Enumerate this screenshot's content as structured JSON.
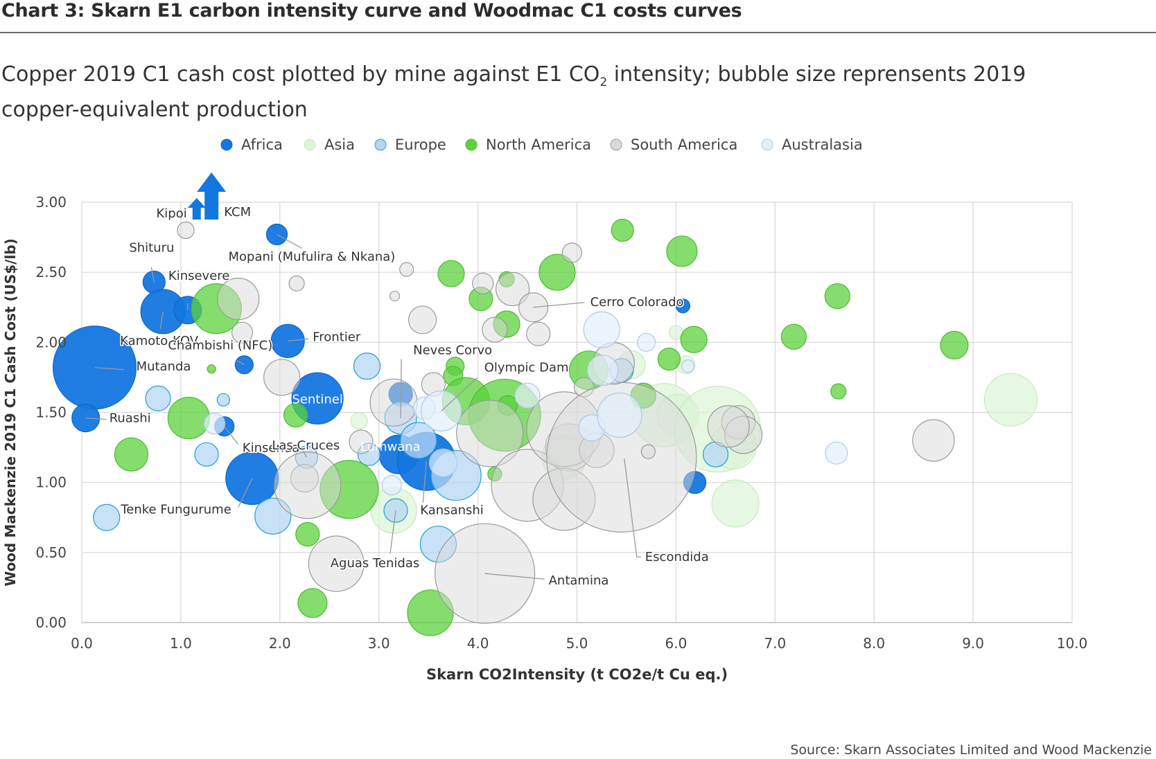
{
  "title": "Chart 3: Skarn E1 carbon intensity curve and Woodmac C1 costs curves",
  "subtitle_pre": "Copper 2019 C1 cash cost plotted by mine against E1 CO",
  "subtitle_sub": "2",
  "subtitle_post": " intensity; bubble size reprensents 2019 copper-equivalent production",
  "source": "Source: Skarn Associates Limited and Wood Mackenzie",
  "colors": {
    "Africa": "#1476e0",
    "Asia": "#dcf3d6",
    "Europe": "#b6d7f4",
    "North America": "#5bd23c",
    "South America": "#d9d9d9",
    "Australasia": "#e3eefb"
  },
  "chart_data": {
    "type": "scatter",
    "bubble": true,
    "xlabel": "Skarn CO2Intensity (t CO2e/t Cu eq.)",
    "ylabel": "Wood Mackenzie 2019 C1 Cash Cost (US$/lb)",
    "xlim": [
      0,
      10
    ],
    "ylim": [
      0,
      3
    ],
    "xticks": [
      "0.0",
      "1.0",
      "2.0",
      "3.0",
      "4.0",
      "5.0",
      "6.0",
      "7.0",
      "8.0",
      "9.0",
      "10.0"
    ],
    "yticks": [
      "0.00",
      "0.50",
      "1.00",
      "1.50",
      "2.00",
      "2.50",
      "3.00"
    ],
    "grid": true,
    "legend_position": "top",
    "legend": [
      "Africa",
      "Asia",
      "Europe",
      "North America",
      "South America",
      "Australasia"
    ],
    "series": [
      {
        "name": "Africa",
        "points": [
          {
            "x": 0.13,
            "y": 1.82,
            "r": 60
          },
          {
            "x": 0.04,
            "y": 1.46,
            "r": 20
          },
          {
            "x": 0.73,
            "y": 2.43,
            "r": 16
          },
          {
            "x": 0.82,
            "y": 2.22,
            "r": 32
          },
          {
            "x": 1.07,
            "y": 2.23,
            "r": 20
          },
          {
            "x": 1.44,
            "y": 1.4,
            "r": 14
          },
          {
            "x": 1.64,
            "y": 1.84,
            "r": 13
          },
          {
            "x": 1.97,
            "y": 2.77,
            "r": 15
          },
          {
            "x": 2.08,
            "y": 2.01,
            "r": 24
          },
          {
            "x": 2.38,
            "y": 1.6,
            "r": 37
          },
          {
            "x": 1.72,
            "y": 1.03,
            "r": 38
          },
          {
            "x": 3.22,
            "y": 1.63,
            "r": 17
          },
          {
            "x": 3.2,
            "y": 1.2,
            "r": 28
          },
          {
            "x": 3.48,
            "y": 1.15,
            "r": 42
          },
          {
            "x": 6.07,
            "y": 2.26,
            "r": 10
          },
          {
            "x": 6.19,
            "y": 1.0,
            "r": 16
          }
        ]
      },
      {
        "name": "Asia",
        "points": [
          {
            "x": 2.8,
            "y": 1.44,
            "r": 12
          },
          {
            "x": 3.15,
            "y": 0.8,
            "r": 33
          },
          {
            "x": 4.87,
            "y": 1.18,
            "r": 32
          },
          {
            "x": 5.88,
            "y": 1.48,
            "r": 46
          },
          {
            "x": 6.02,
            "y": 1.48,
            "r": 30
          },
          {
            "x": 6.0,
            "y": 2.07,
            "r": 10
          },
          {
            "x": 6.1,
            "y": 1.84,
            "r": 13
          },
          {
            "x": 6.42,
            "y": 1.38,
            "r": 62
          },
          {
            "x": 6.58,
            "y": 1.26,
            "r": 33
          },
          {
            "x": 6.6,
            "y": 0.85,
            "r": 34
          },
          {
            "x": 9.38,
            "y": 1.59,
            "r": 38
          },
          {
            "x": 5.55,
            "y": 1.84,
            "r": 20
          }
        ]
      },
      {
        "name": "Europe",
        "points": [
          {
            "x": 0.25,
            "y": 0.75,
            "r": 19
          },
          {
            "x": 0.77,
            "y": 1.6,
            "r": 18
          },
          {
            "x": 1.26,
            "y": 1.2,
            "r": 17
          },
          {
            "x": 1.43,
            "y": 1.59,
            "r": 9
          },
          {
            "x": 1.93,
            "y": 0.76,
            "r": 26
          },
          {
            "x": 2.27,
            "y": 1.18,
            "r": 16
          },
          {
            "x": 2.88,
            "y": 1.83,
            "r": 19
          },
          {
            "x": 2.9,
            "y": 1.2,
            "r": 16
          },
          {
            "x": 3.22,
            "y": 1.46,
            "r": 23
          },
          {
            "x": 3.4,
            "y": 1.3,
            "r": 26
          },
          {
            "x": 3.78,
            "y": 1.05,
            "r": 36
          },
          {
            "x": 3.6,
            "y": 0.56,
            "r": 26
          },
          {
            "x": 3.17,
            "y": 0.8,
            "r": 17
          },
          {
            "x": 5.45,
            "y": 1.8,
            "r": 17
          },
          {
            "x": 6.4,
            "y": 1.2,
            "r": 18
          }
        ]
      },
      {
        "name": "North America",
        "points": [
          {
            "x": 0.5,
            "y": 1.2,
            "r": 24
          },
          {
            "x": 1.08,
            "y": 1.46,
            "r": 30
          },
          {
            "x": 1.36,
            "y": 2.24,
            "r": 36
          },
          {
            "x": 1.31,
            "y": 1.81,
            "r": 6
          },
          {
            "x": 2.16,
            "y": 1.48,
            "r": 17
          },
          {
            "x": 2.28,
            "y": 0.63,
            "r": 17
          },
          {
            "x": 2.33,
            "y": 0.14,
            "r": 21
          },
          {
            "x": 2.7,
            "y": 0.95,
            "r": 42
          },
          {
            "x": 3.52,
            "y": 0.07,
            "r": 33
          },
          {
            "x": 3.73,
            "y": 2.49,
            "r": 19
          },
          {
            "x": 3.77,
            "y": 1.83,
            "r": 13
          },
          {
            "x": 3.75,
            "y": 1.76,
            "r": 14
          },
          {
            "x": 3.88,
            "y": 1.58,
            "r": 34
          },
          {
            "x": 4.03,
            "y": 2.31,
            "r": 17
          },
          {
            "x": 4.29,
            "y": 2.13,
            "r": 19
          },
          {
            "x": 4.29,
            "y": 2.45,
            "r": 11
          },
          {
            "x": 4.27,
            "y": 1.48,
            "r": 52
          },
          {
            "x": 4.3,
            "y": 1.55,
            "r": 14
          },
          {
            "x": 4.17,
            "y": 1.06,
            "r": 10
          },
          {
            "x": 4.8,
            "y": 2.5,
            "r": 26
          },
          {
            "x": 5.12,
            "y": 1.8,
            "r": 28
          },
          {
            "x": 5.46,
            "y": 2.8,
            "r": 16
          },
          {
            "x": 5.67,
            "y": 1.62,
            "r": 18
          },
          {
            "x": 5.93,
            "y": 1.88,
            "r": 16
          },
          {
            "x": 6.06,
            "y": 2.65,
            "r": 22
          },
          {
            "x": 6.18,
            "y": 2.02,
            "r": 19
          },
          {
            "x": 7.19,
            "y": 2.04,
            "r": 18
          },
          {
            "x": 7.63,
            "y": 2.33,
            "r": 18
          },
          {
            "x": 7.64,
            "y": 1.65,
            "r": 11
          },
          {
            "x": 8.81,
            "y": 1.98,
            "r": 20
          }
        ]
      },
      {
        "name": "South America",
        "points": [
          {
            "x": 1.05,
            "y": 2.8,
            "r": 12
          },
          {
            "x": 1.58,
            "y": 2.31,
            "r": 30
          },
          {
            "x": 1.62,
            "y": 2.07,
            "r": 15
          },
          {
            "x": 2.02,
            "y": 1.75,
            "r": 26
          },
          {
            "x": 2.17,
            "y": 2.42,
            "r": 11
          },
          {
            "x": 2.25,
            "y": 1.03,
            "r": 20
          },
          {
            "x": 2.28,
            "y": 0.98,
            "r": 48
          },
          {
            "x": 2.57,
            "y": 0.42,
            "r": 40
          },
          {
            "x": 2.82,
            "y": 1.29,
            "r": 17
          },
          {
            "x": 3.15,
            "y": 1.57,
            "r": 34
          },
          {
            "x": 3.16,
            "y": 2.33,
            "r": 7
          },
          {
            "x": 3.28,
            "y": 2.52,
            "r": 10
          },
          {
            "x": 3.44,
            "y": 2.16,
            "r": 20
          },
          {
            "x": 3.55,
            "y": 1.7,
            "r": 17
          },
          {
            "x": 4.05,
            "y": 2.42,
            "r": 15
          },
          {
            "x": 4.07,
            "y": 0.35,
            "r": 72
          },
          {
            "x": 4.12,
            "y": 1.35,
            "r": 48
          },
          {
            "x": 4.17,
            "y": 2.09,
            "r": 18
          },
          {
            "x": 4.35,
            "y": 2.38,
            "r": 24
          },
          {
            "x": 4.56,
            "y": 2.25,
            "r": 21
          },
          {
            "x": 4.61,
            "y": 2.06,
            "r": 17
          },
          {
            "x": 4.5,
            "y": 0.98,
            "r": 52
          },
          {
            "x": 4.92,
            "y": 1.25,
            "r": 34
          },
          {
            "x": 4.87,
            "y": 1.38,
            "r": 54
          },
          {
            "x": 4.95,
            "y": 2.64,
            "r": 14
          },
          {
            "x": 4.87,
            "y": 0.88,
            "r": 45
          },
          {
            "x": 5.07,
            "y": 1.68,
            "r": 14
          },
          {
            "x": 5.2,
            "y": 1.23,
            "r": 25
          },
          {
            "x": 5.45,
            "y": 1.18,
            "r": 108
          },
          {
            "x": 5.37,
            "y": 1.85,
            "r": 30
          },
          {
            "x": 6.63,
            "y": 1.43,
            "r": 24
          },
          {
            "x": 6.68,
            "y": 1.34,
            "r": 27
          },
          {
            "x": 6.53,
            "y": 1.4,
            "r": 30
          },
          {
            "x": 8.6,
            "y": 1.3,
            "r": 30
          },
          {
            "x": 5.72,
            "y": 1.22,
            "r": 10
          }
        ]
      },
      {
        "name": "Australasia",
        "points": [
          {
            "x": 1.34,
            "y": 1.42,
            "r": 15
          },
          {
            "x": 3.13,
            "y": 0.98,
            "r": 14
          },
          {
            "x": 3.46,
            "y": 1.53,
            "r": 16
          },
          {
            "x": 3.63,
            "y": 1.51,
            "r": 29
          },
          {
            "x": 3.65,
            "y": 1.14,
            "r": 20
          },
          {
            "x": 4.5,
            "y": 1.62,
            "r": 18
          },
          {
            "x": 5.15,
            "y": 1.39,
            "r": 19
          },
          {
            "x": 5.25,
            "y": 2.09,
            "r": 26
          },
          {
            "x": 5.26,
            "y": 1.8,
            "r": 22
          },
          {
            "x": 5.43,
            "y": 1.48,
            "r": 32
          },
          {
            "x": 5.7,
            "y": 2.0,
            "r": 13
          },
          {
            "x": 6.12,
            "y": 1.83,
            "r": 9
          },
          {
            "x": 7.62,
            "y": 1.21,
            "r": 16
          }
        ]
      }
    ],
    "offscale_arrows": [
      {
        "label": "Kipoi"
      },
      {
        "label": "KCM"
      }
    ],
    "annotations": [
      {
        "text": "Mutanda",
        "x": 0.13,
        "y": 1.82
      },
      {
        "text": "Ruashi",
        "x": 0.04,
        "y": 1.46
      },
      {
        "text": "Shituru",
        "x": 0.73,
        "y": 2.43
      },
      {
        "text": "Kinsevere",
        "x": 1.07,
        "y": 2.23
      },
      {
        "text": "Kamoto-KOV",
        "x": 0.82,
        "y": 2.22
      },
      {
        "text": "Chambishi (NFC)",
        "x": 1.64,
        "y": 1.84
      },
      {
        "text": "Kinsenda",
        "x": 1.44,
        "y": 1.4
      },
      {
        "text": "Mopani (Mufulira & Nkana)",
        "x": 1.97,
        "y": 2.77
      },
      {
        "text": "Frontier",
        "x": 2.08,
        "y": 2.01
      },
      {
        "text": "Sentinel",
        "x": 2.38,
        "y": 1.6
      },
      {
        "text": "Tenke Fungurume",
        "x": 1.72,
        "y": 1.03
      },
      {
        "text": "Las Cruces",
        "x": 2.27,
        "y": 1.18
      },
      {
        "text": "Neves Corvo",
        "x": 3.22,
        "y": 1.46
      },
      {
        "text": "Lumwana",
        "x": 3.2,
        "y": 1.2
      },
      {
        "text": "Aguas Tenidas",
        "x": 3.17,
        "y": 0.8
      },
      {
        "text": "Kansanshi",
        "x": 3.48,
        "y": 1.15
      },
      {
        "text": "Olympic Dam",
        "x": 3.63,
        "y": 1.51
      },
      {
        "text": "Cerro Colorado",
        "x": 4.56,
        "y": 2.25
      },
      {
        "text": "Antamina",
        "x": 4.07,
        "y": 0.35
      },
      {
        "text": "Escondida",
        "x": 5.45,
        "y": 1.18
      }
    ]
  }
}
